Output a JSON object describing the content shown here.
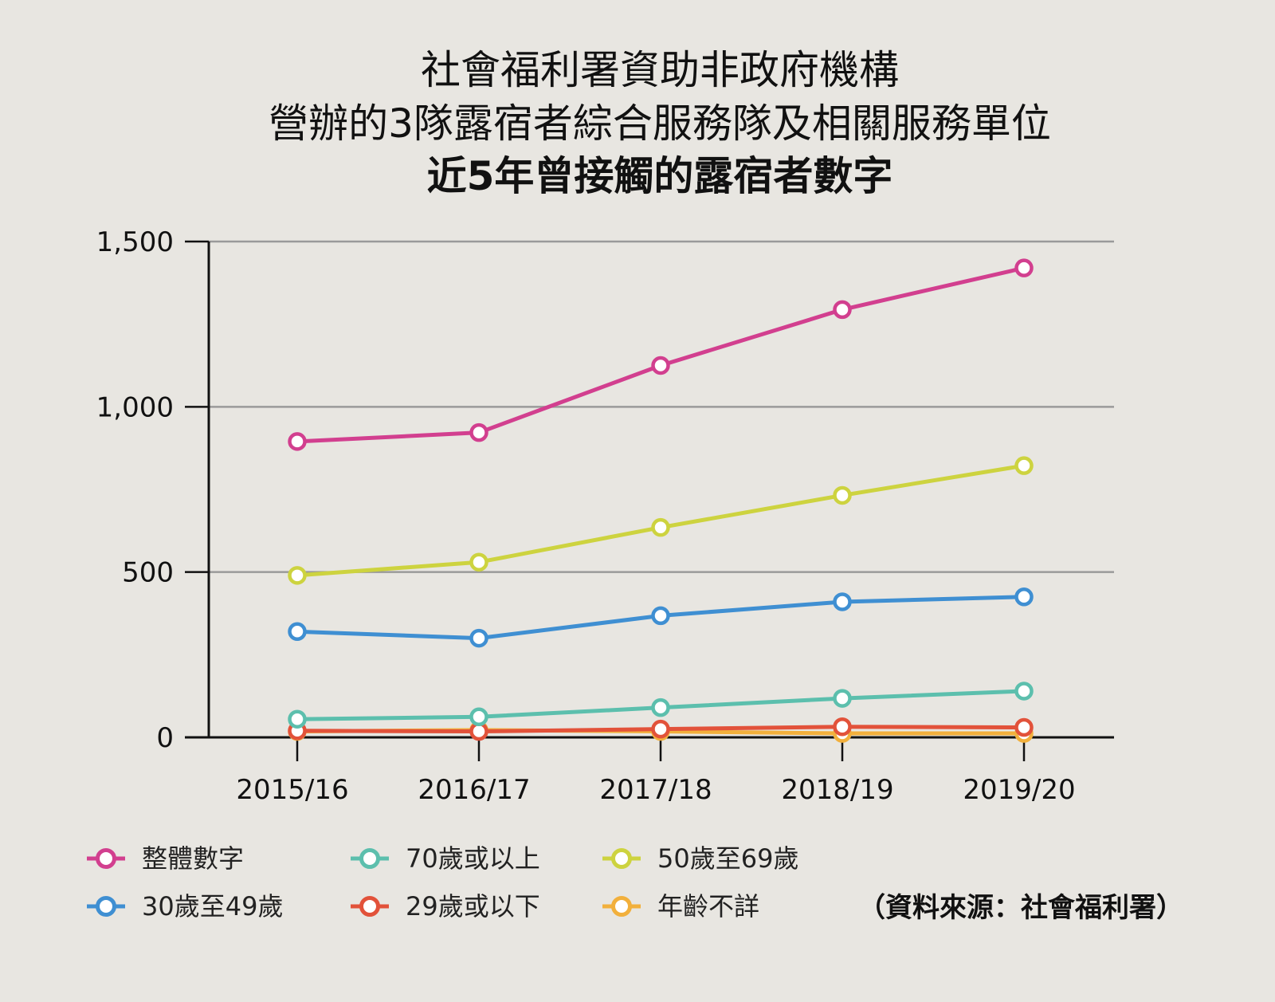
{
  "chart_data": {
    "type": "line",
    "title_lines": [
      "社會福利署資助非政府機構",
      "營辦的3隊露宿者綜合服務隊及相關服務單位",
      "近5年曾接觸的露宿者數字"
    ],
    "xlabel": "",
    "ylabel": "",
    "categories": [
      "2015/16",
      "2016/17",
      "2017/18",
      "2018/19",
      "2019/20"
    ],
    "ylim": [
      0,
      1500
    ],
    "yticks": [
      0,
      500,
      1000,
      1500
    ],
    "ytick_labels": [
      "0",
      "500",
      "1,000",
      "1,500"
    ],
    "grid": true,
    "legend_position": "bottom",
    "series": [
      {
        "name": "整體數字",
        "color": "#d23f8f",
        "values": [
          895,
          922,
          1125,
          1294,
          1420
        ]
      },
      {
        "name": "70歲或以上",
        "color": "#5cbfad",
        "values": [
          55,
          62,
          90,
          118,
          140
        ]
      },
      {
        "name": "50歲至69歲",
        "color": "#cdd33f",
        "values": [
          490,
          530,
          635,
          732,
          822
        ]
      },
      {
        "name": "30歲至49歲",
        "color": "#3f8fd2",
        "values": [
          320,
          300,
          368,
          410,
          425
        ]
      },
      {
        "name": "29歲或以下",
        "color": "#e2523a",
        "values": [
          20,
          18,
          25,
          32,
          30
        ]
      },
      {
        "name": "年齡不詳",
        "color": "#f2b03c",
        "values": [
          18,
          22,
          18,
          12,
          12
        ]
      }
    ],
    "source_note": "（資料來源：社會福利署）"
  }
}
